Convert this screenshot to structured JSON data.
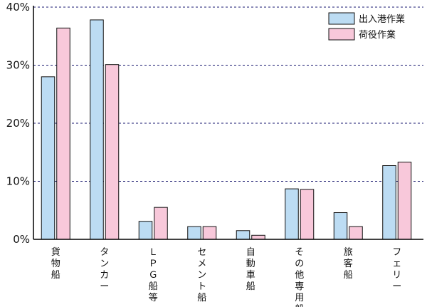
{
  "chart_data": {
    "type": "bar",
    "categories": [
      "貨物船",
      "タンカー",
      "ＬＰＧ船等",
      "セメント船",
      "自動車船",
      "その他専用船",
      "旅客船",
      "フェリー"
    ],
    "series": [
      {
        "name": "出入港作業",
        "values": [
          28.0,
          37.8,
          3.1,
          2.2,
          1.5,
          8.7,
          4.6,
          12.7
        ]
      },
      {
        "name": "荷役作業",
        "values": [
          36.4,
          30.1,
          5.5,
          2.2,
          0.7,
          8.6,
          2.2,
          13.3
        ]
      }
    ],
    "y_ticks": [
      "0%",
      "10%",
      "20%",
      "30%",
      "40%"
    ],
    "ylim": [
      0,
      40
    ],
    "grid": true,
    "legend_position": "top-right",
    "title": "",
    "xlabel": "",
    "ylabel": ""
  },
  "colors": {
    "series_fills": [
      "#bcdcf3",
      "#f8c8da"
    ],
    "grid_line": "#1a1a70",
    "axis": "#000000"
  }
}
